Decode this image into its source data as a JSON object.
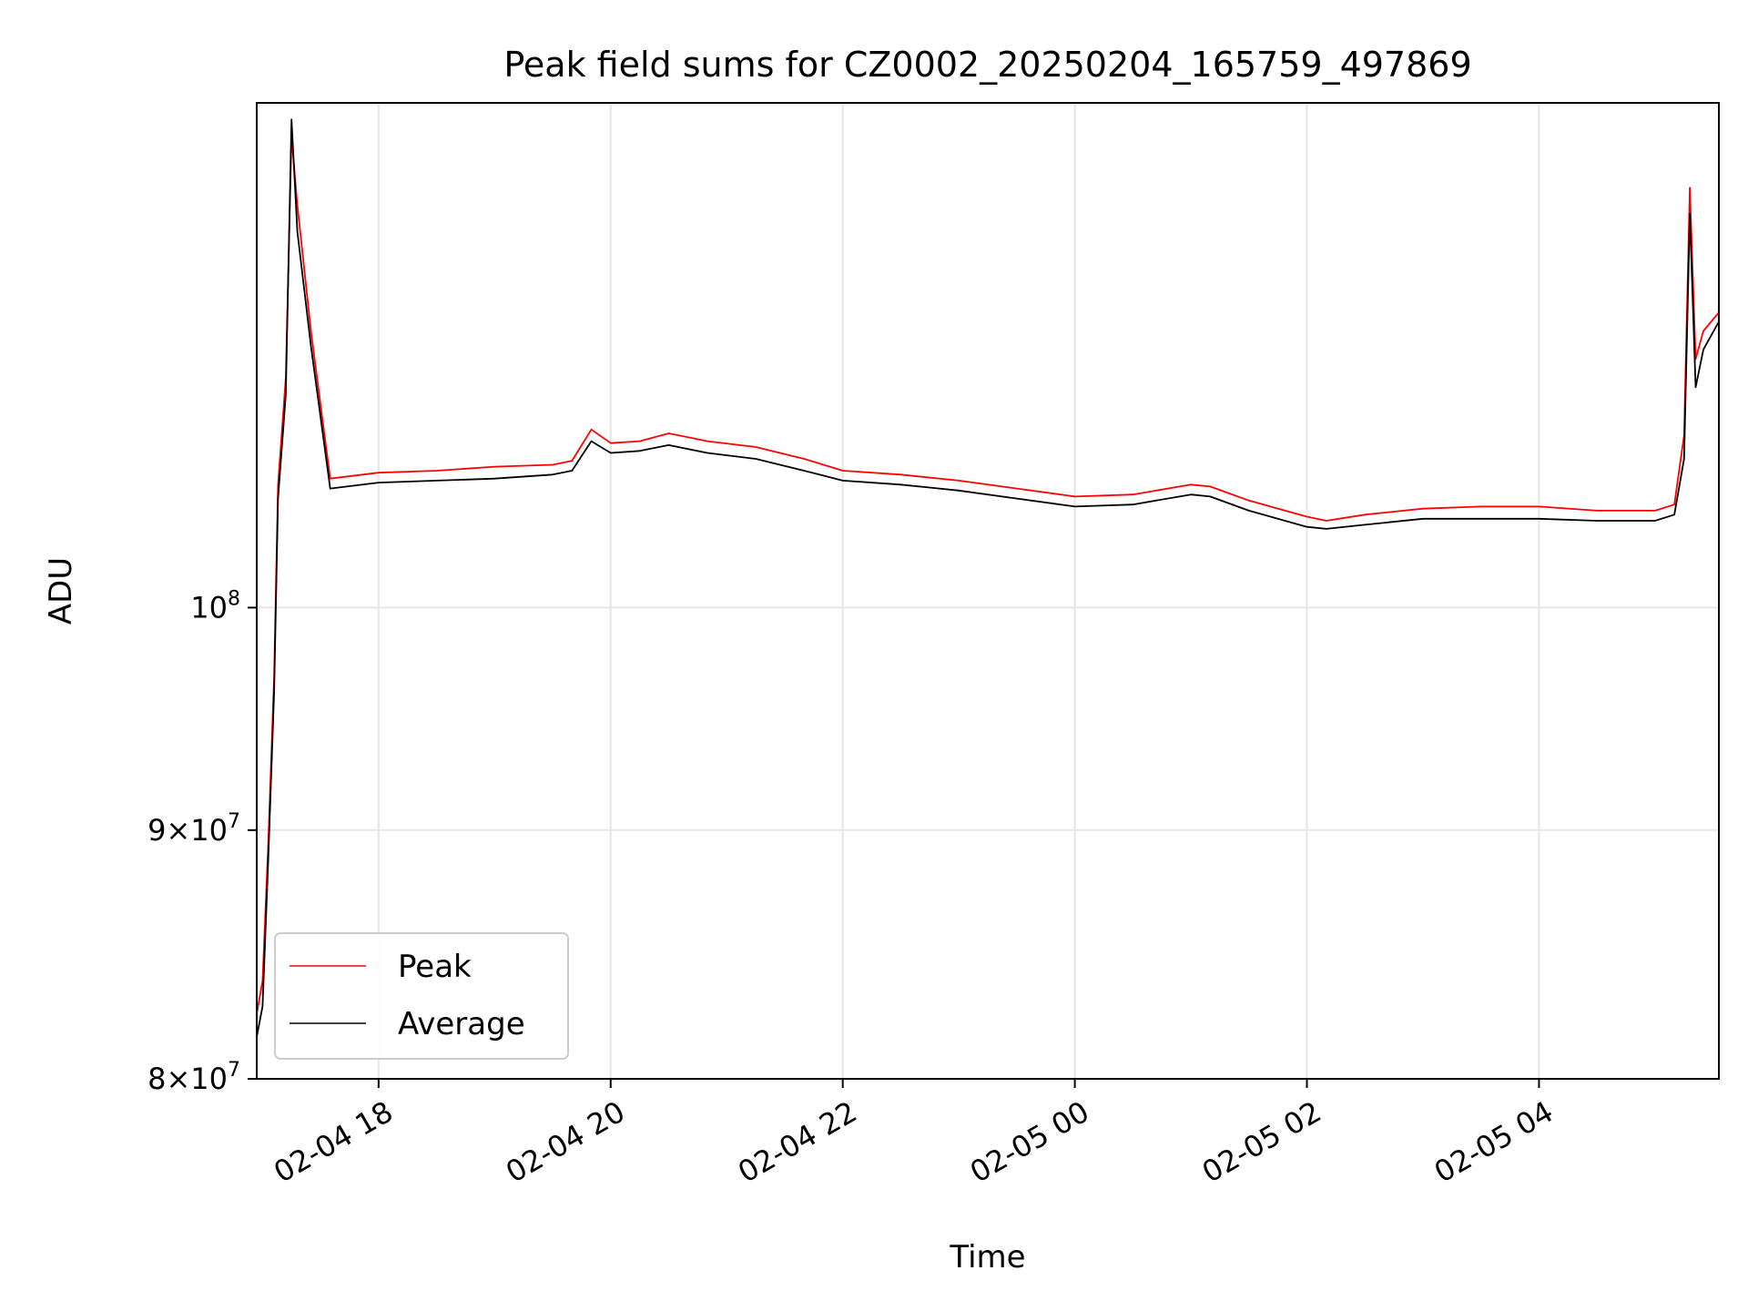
{
  "chart_data": {
    "type": "line",
    "title": "Peak field sums for CZ0002_20250204_165759_497869",
    "xlabel": "Time",
    "ylabel": "ADU",
    "x_range": [
      "2025-02-04 16:57",
      "2025-02-05 05:33"
    ],
    "ylim": [
      80000000,
      127000000
    ],
    "y_scale": "log",
    "grid": true,
    "legend_position": "lower-left",
    "x_ticks": [
      {
        "t": "2025-02-04 18:00",
        "label": "02-04 18"
      },
      {
        "t": "2025-02-04 20:00",
        "label": "02-04 20"
      },
      {
        "t": "2025-02-04 22:00",
        "label": "02-04 22"
      },
      {
        "t": "2025-02-05 00:00",
        "label": "02-05 00"
      },
      {
        "t": "2025-02-05 02:00",
        "label": "02-05 02"
      },
      {
        "t": "2025-02-05 04:00",
        "label": "02-05 04"
      }
    ],
    "y_ticks": [
      {
        "value": 80000000,
        "mantissa": "8",
        "base": "10",
        "exp": "7"
      },
      {
        "value": 90000000,
        "mantissa": "9",
        "base": "10",
        "exp": "7"
      },
      {
        "value": 100000000,
        "mantissa": "",
        "base": "10",
        "exp": "8"
      }
    ],
    "series": [
      {
        "name": "Peak",
        "color": "#ff0000",
        "x": [
          "2025-02-04 16:57",
          "2025-02-04 17:00",
          "2025-02-04 17:03",
          "2025-02-04 17:06",
          "2025-02-04 17:08",
          "2025-02-04 17:12",
          "2025-02-04 17:15",
          "2025-02-04 17:18",
          "2025-02-04 17:25",
          "2025-02-04 17:35",
          "2025-02-04 18:00",
          "2025-02-04 18:30",
          "2025-02-04 19:00",
          "2025-02-04 19:30",
          "2025-02-04 19:40",
          "2025-02-04 19:50",
          "2025-02-04 20:00",
          "2025-02-04 20:15",
          "2025-02-04 20:30",
          "2025-02-04 20:50",
          "2025-02-04 21:15",
          "2025-02-04 21:40",
          "2025-02-04 22:00",
          "2025-02-04 22:30",
          "2025-02-04 23:00",
          "2025-02-04 23:30",
          "2025-02-05 00:00",
          "2025-02-05 00:30",
          "2025-02-05 01:00",
          "2025-02-05 01:10",
          "2025-02-05 01:30",
          "2025-02-05 02:00",
          "2025-02-05 02:10",
          "2025-02-05 02:30",
          "2025-02-05 03:00",
          "2025-02-05 03:30",
          "2025-02-05 04:00",
          "2025-02-05 04:30",
          "2025-02-05 05:00",
          "2025-02-05 05:10",
          "2025-02-05 05:15",
          "2025-02-05 05:18",
          "2025-02-05 05:21",
          "2025-02-05 05:25",
          "2025-02-05 05:33"
        ],
        "y": [
          82500000,
          83800000,
          89500000,
          96800000,
          106000000,
          111500000,
          125000000,
          121000000,
          114000000,
          106300000,
          106600000,
          106700000,
          106900000,
          107000000,
          107200000,
          108800000,
          108100000,
          108200000,
          108600000,
          108200000,
          107900000,
          107300000,
          106700000,
          106500000,
          106200000,
          105800000,
          105400000,
          105500000,
          106000000,
          105900000,
          105200000,
          104400000,
          104200000,
          104500000,
          104800000,
          104900000,
          104900000,
          104700000,
          104700000,
          105000000,
          108500000,
          122000000,
          112500000,
          114000000,
          115000000
        ]
      },
      {
        "name": "Average",
        "color": "#000000",
        "x": [
          "2025-02-04 16:57",
          "2025-02-04 17:00",
          "2025-02-04 17:03",
          "2025-02-04 17:06",
          "2025-02-04 17:08",
          "2025-02-04 17:12",
          "2025-02-04 17:15",
          "2025-02-04 17:18",
          "2025-02-04 17:25",
          "2025-02-04 17:35",
          "2025-02-04 18:00",
          "2025-02-04 18:30",
          "2025-02-04 19:00",
          "2025-02-04 19:30",
          "2025-02-04 19:40",
          "2025-02-04 19:50",
          "2025-02-04 20:00",
          "2025-02-04 20:15",
          "2025-02-04 20:30",
          "2025-02-04 20:50",
          "2025-02-04 21:15",
          "2025-02-04 21:40",
          "2025-02-04 22:00",
          "2025-02-04 22:30",
          "2025-02-04 23:00",
          "2025-02-04 23:30",
          "2025-02-05 00:00",
          "2025-02-05 00:30",
          "2025-02-05 01:00",
          "2025-02-05 01:10",
          "2025-02-05 01:30",
          "2025-02-05 02:00",
          "2025-02-05 02:10",
          "2025-02-05 02:30",
          "2025-02-05 03:00",
          "2025-02-05 03:30",
          "2025-02-05 04:00",
          "2025-02-05 04:30",
          "2025-02-05 05:00",
          "2025-02-05 05:10",
          "2025-02-05 05:15",
          "2025-02-05 05:18",
          "2025-02-05 05:21",
          "2025-02-05 05:25",
          "2025-02-05 05:33"
        ],
        "y": [
          81600000,
          82800000,
          88800000,
          96100000,
          105300000,
          110600000,
          126000000,
          119500000,
          113200000,
          105800000,
          106100000,
          106200000,
          106300000,
          106500000,
          106700000,
          108200000,
          107600000,
          107700000,
          108000000,
          107600000,
          107300000,
          106700000,
          106200000,
          106000000,
          105700000,
          105300000,
          104900000,
          105000000,
          105500000,
          105400000,
          104700000,
          103900000,
          103800000,
          104000000,
          104300000,
          104300000,
          104300000,
          104200000,
          104200000,
          104500000,
          107300000,
          120500000,
          111000000,
          113000000,
          114500000
        ]
      }
    ]
  }
}
